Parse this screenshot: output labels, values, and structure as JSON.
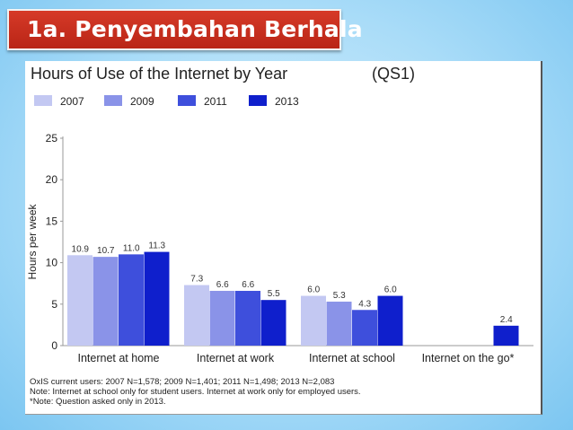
{
  "slide": {
    "title": "1a. Penyembahan Berhala"
  },
  "chart_data": {
    "type": "bar",
    "title": "Hours of Use of the Internet by Year",
    "subtitle": "(QS1)",
    "xlabel": "",
    "ylabel": "Hours per week",
    "ylim": [
      0,
      25
    ],
    "yticks": [
      0,
      5,
      10,
      15,
      20,
      25
    ],
    "grid": false,
    "legend_position": "top-left",
    "categories": [
      "Internet at home",
      "Internet at work",
      "Internet at school",
      "Internet on the go*"
    ],
    "series": [
      {
        "name": "2007",
        "color": "#c3c8f2",
        "values": [
          10.9,
          7.3,
          6.0,
          null
        ],
        "labels": [
          "10.9",
          "7.3",
          "6.0",
          ""
        ]
      },
      {
        "name": "2009",
        "color": "#8a93e8",
        "values": [
          10.7,
          6.6,
          5.3,
          null
        ],
        "labels": [
          "10.7",
          "6.6",
          "5.3",
          ""
        ]
      },
      {
        "name": "2011",
        "color": "#3e4fdc",
        "values": [
          11.0,
          6.6,
          4.3,
          null
        ],
        "labels": [
          "11.0",
          "6.6",
          "4.3",
          ""
        ]
      },
      {
        "name": "2013",
        "color": "#0f1fcc",
        "values": [
          11.3,
          5.5,
          6.0,
          2.4
        ],
        "labels": [
          "11.3",
          "5.5",
          "6.0",
          "2.4"
        ]
      }
    ],
    "notes": [
      "OxIS current users: 2007 N=1,578; 2009 N=1,401; 2011 N=1,498; 2013 N=2,083",
      "Note: Internet at school only for student users. Internet at work only for employed users.",
      "*Note: Question asked only in 2013."
    ]
  }
}
